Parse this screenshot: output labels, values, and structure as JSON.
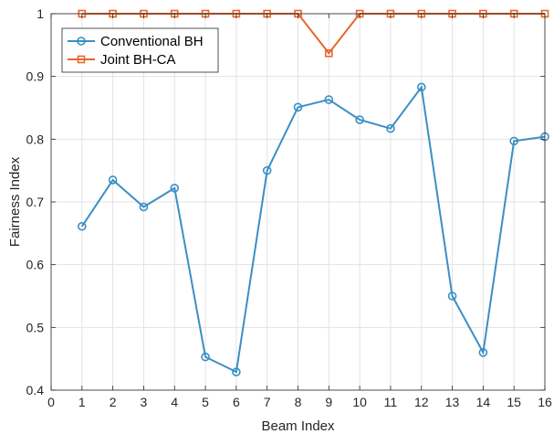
{
  "chart_data": {
    "type": "line",
    "title": "",
    "xlabel": "Beam Index",
    "ylabel": "Fairness Index",
    "xlim": [
      0,
      16
    ],
    "ylim": [
      0.4,
      1.0
    ],
    "grid": true,
    "legend_position": "top-left",
    "x_ticks": [
      "0",
      "1",
      "2",
      "3",
      "4",
      "5",
      "6",
      "7",
      "8",
      "9",
      "10",
      "11",
      "12",
      "13",
      "14",
      "15",
      "16"
    ],
    "y_ticks": [
      "0.4",
      "0.5",
      "0.6",
      "0.7",
      "0.8",
      "0.9",
      "1"
    ],
    "x": [
      1,
      2,
      3,
      4,
      5,
      6,
      7,
      8,
      9,
      10,
      11,
      12,
      13,
      14,
      15,
      16
    ],
    "series": [
      {
        "name": "Conventional BH",
        "color": "#3a8fc4",
        "marker": "circle",
        "values": [
          0.661,
          0.735,
          0.692,
          0.722,
          0.453,
          0.429,
          0.75,
          0.851,
          0.863,
          0.831,
          0.817,
          0.883,
          0.55,
          0.46,
          0.797,
          0.804
        ]
      },
      {
        "name": "Joint BH-CA",
        "color": "#e8662c",
        "marker": "square",
        "values": [
          1.0,
          1.0,
          1.0,
          1.0,
          1.0,
          1.0,
          1.0,
          1.0,
          0.937,
          1.0,
          1.0,
          1.0,
          1.0,
          1.0,
          1.0,
          1.0
        ]
      }
    ]
  }
}
